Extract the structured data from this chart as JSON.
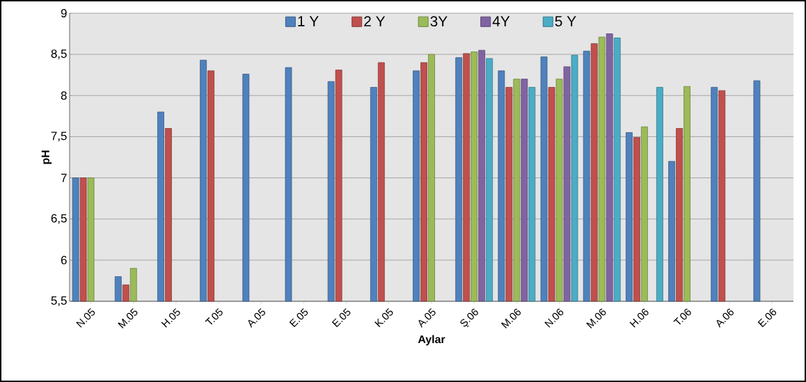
{
  "chart_data": {
    "type": "bar",
    "xlabel": "Aylar",
    "ylabel": "pH",
    "categories": [
      "N.05",
      "M.05",
      "H.05",
      "T.05",
      "A.05",
      "E.05",
      "E.05",
      "K.05",
      "A.05",
      "Ş.06",
      "M.06",
      "N.06",
      "M.06",
      "H.06",
      "T.06",
      "A.06",
      "E.06"
    ],
    "series": [
      {
        "name": "1 Y",
        "color": "#4f81bd",
        "values": [
          7,
          5.8,
          7.8,
          8.43,
          8.26,
          8.34,
          8.17,
          8.1,
          8.3,
          8.46,
          8.3,
          8.47,
          8.54,
          7.55,
          7.2,
          8.1,
          8.18
        ]
      },
      {
        "name": "2 Y",
        "color": "#c0504d",
        "values": [
          7,
          5.7,
          7.6,
          8.3,
          null,
          null,
          8.31,
          8.4,
          8.4,
          8.51,
          8.1,
          8.1,
          8.63,
          7.49,
          7.6,
          8.06,
          null
        ]
      },
      {
        "name": "3Y",
        "color": "#9bbb59",
        "values": [
          7,
          5.9,
          null,
          null,
          null,
          null,
          null,
          null,
          8.5,
          8.53,
          8.2,
          8.2,
          8.71,
          7.62,
          8.11,
          null,
          null
        ]
      },
      {
        "name": "4Y",
        "color": "#8064a2",
        "values": [
          null,
          null,
          null,
          null,
          null,
          null,
          null,
          null,
          null,
          8.55,
          8.2,
          8.35,
          8.75,
          null,
          null,
          null,
          null
        ]
      },
      {
        "name": "5 Y",
        "color": "#4bacc6",
        "values": [
          null,
          null,
          null,
          null,
          null,
          null,
          null,
          null,
          null,
          8.45,
          8.1,
          8.49,
          8.7,
          8.1,
          null,
          null,
          null
        ]
      }
    ],
    "ylim": [
      5.5,
      9
    ],
    "yticks": [
      {
        "value": 5.5,
        "label": "5,5"
      },
      6,
      {
        "value": 6.5,
        "label": "6,5"
      },
      7,
      {
        "value": 7.5,
        "label": "7,5"
      },
      8,
      {
        "value": 8.5,
        "label": "8,5"
      },
      9
    ],
    "grid": "y",
    "legend": "top"
  }
}
